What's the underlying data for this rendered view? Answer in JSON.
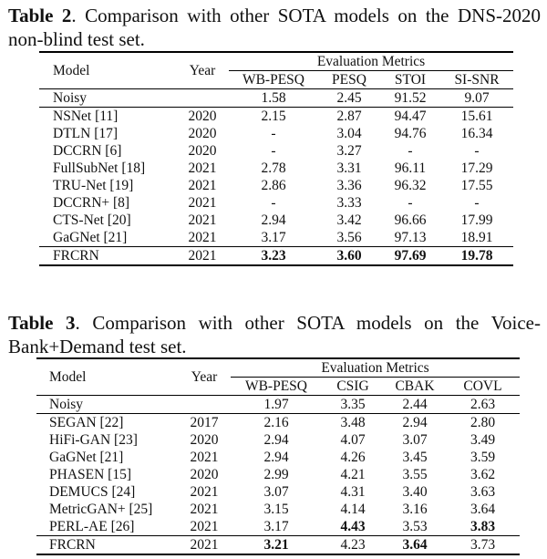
{
  "table2": {
    "caption_label": "Table 2",
    "caption_text": ". Comparison with other SOTA models on the DNS-2020 non-blind test set.",
    "header": {
      "model": "Model",
      "year": "Year",
      "group": "Evaluation Metrics",
      "metrics": [
        "WB-PESQ",
        "PESQ",
        "STOI",
        "SI-SNR"
      ]
    },
    "noisy": [
      "Noisy",
      "",
      "1.58",
      "2.45",
      "91.52",
      "9.07"
    ],
    "rows": [
      [
        "NSNet [11]",
        "2020",
        "2.15",
        "2.87",
        "94.47",
        "15.61"
      ],
      [
        "DTLN [17]",
        "2020",
        "-",
        "3.04",
        "94.76",
        "16.34"
      ],
      [
        "DCCRN [6]",
        "2020",
        "-",
        "3.27",
        "-",
        "-"
      ],
      [
        "FullSubNet [18]",
        "2021",
        "2.78",
        "3.31",
        "96.11",
        "17.29"
      ],
      [
        "TRU-Net [19]",
        "2021",
        "2.86",
        "3.36",
        "96.32",
        "17.55"
      ],
      [
        "DCCRN+ [8]",
        "2021",
        "-",
        "3.33",
        "-",
        "-"
      ],
      [
        "CTS-Net [20]",
        "2021",
        "2.94",
        "3.42",
        "96.66",
        "17.99"
      ],
      [
        "GaGNet [21]",
        "2021",
        "3.17",
        "3.56",
        "97.13",
        "18.91"
      ]
    ],
    "final": [
      "FRCRN",
      "2021",
      "3.23",
      "3.60",
      "97.69",
      "19.78"
    ]
  },
  "table3": {
    "caption_label": "Table 3",
    "caption_text": ". Comparison with other SOTA models on the Voice-Bank+Demand test set.",
    "header": {
      "model": "Model",
      "year": "Year",
      "group": "Evaluation Metrics",
      "metrics": [
        "WB-PESQ",
        "CSIG",
        "CBAK",
        "COVL"
      ]
    },
    "noisy": [
      "Noisy",
      "",
      "1.97",
      "3.35",
      "2.44",
      "2.63"
    ],
    "rows": [
      [
        "SEGAN [22]",
        "2017",
        "2.16",
        "3.48",
        "2.94",
        "2.80"
      ],
      [
        "HiFi-GAN [23]",
        "2020",
        "2.94",
        "4.07",
        "3.07",
        "3.49"
      ],
      [
        "GaGNet [21]",
        "2021",
        "2.94",
        "4.26",
        "3.45",
        "3.59"
      ],
      [
        "PHASEN [15]",
        "2020",
        "2.99",
        "4.21",
        "3.55",
        "3.62"
      ],
      [
        "DEMUCS [24]",
        "2021",
        "3.07",
        "4.31",
        "3.40",
        "3.63"
      ],
      [
        "MetricGAN+ [25]",
        "2021",
        "3.15",
        "4.14",
        "3.16",
        "3.64"
      ],
      [
        "PERL-AE [26]",
        "2021",
        "3.17",
        "4.43",
        "3.53",
        "3.83"
      ]
    ],
    "final": [
      "FRCRN",
      "2021",
      "3.21",
      "4.23",
      "3.64",
      "3.73"
    ]
  }
}
